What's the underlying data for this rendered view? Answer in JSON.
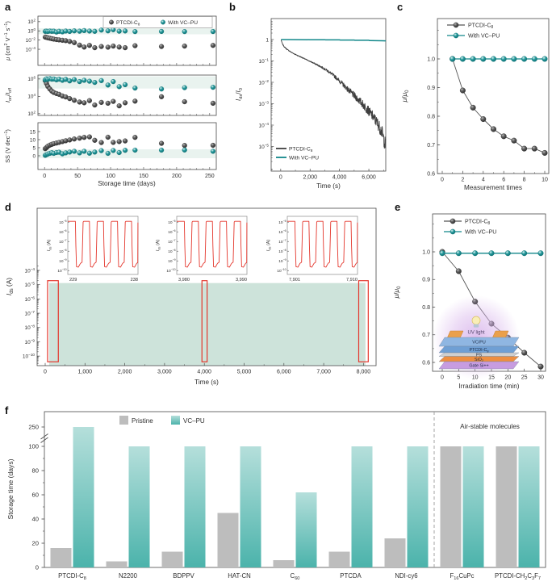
{
  "colors": {
    "teal": "#11878a",
    "dark": "#3f3f3f",
    "dark_line": "#4a4a4a",
    "band": "#e9f3ef",
    "fill": "#cde3da",
    "red": "#e4362c",
    "bar_gray": "#bdbdbd",
    "bar_teal_top": "#b5dfdb",
    "bar_teal_bottom": "#4bb3ab",
    "axis": "#4a4a4a",
    "text": "#2e2e2e",
    "glow": "#d8b4eb"
  },
  "chart_data": [
    {
      "id": "a",
      "label": "a",
      "type": "scatter-multi",
      "x_title": "Storage time (days)",
      "x_ticks": [
        0,
        50,
        100,
        150,
        200,
        250
      ],
      "legend": [
        {
          "name": "PTCDI-C<sub>8</sub>",
          "series": "dark"
        },
        {
          "name": "With VC–PU",
          "series": "teal"
        }
      ],
      "days": [
        1,
        3,
        5,
        8,
        11,
        14,
        18,
        22,
        27,
        32,
        38,
        45,
        53,
        60,
        68,
        76,
        86,
        96,
        104,
        113,
        122,
        137,
        177,
        212,
        255
      ],
      "subplots": [
        {
          "y_title": "<i>μ</i> (cm<sup>2</sup> V<sup>−1</sup> s<sup>−1</sup>)",
          "scale": "log",
          "y_tick_exps": [
            2,
            0,
            -2,
            -4
          ],
          "dark": [
            0.045,
            0.038,
            0.031,
            0.025,
            0.02,
            0.016,
            0.013,
            0.011,
            0.009,
            0.0075,
            0.005,
            0.0028,
            0.0008,
            0.0003,
            0.0007,
            0.00022,
            0.0004,
            0.00028,
            0.0005,
            0.0003,
            0.00022,
            0.0006,
            0.0004,
            0.0005,
            0.0007
          ],
          "teal": [
            0.8,
            0.85,
            0.75,
            0.9,
            0.8,
            0.85,
            0.55,
            0.8,
            0.6,
            0.9,
            0.75,
            1.0,
            0.85,
            1.15,
            0.9,
            0.8,
            1.5,
            1.0,
            1.8,
            0.85,
            0.95,
            0.7,
            0.75,
            0.7,
            0.72
          ]
        },
        {
          "y_title": "<i>I</i><sub>on</sub>/<i>I</i><sub>off</sub>",
          "scale": "log",
          "y_tick_exps": [
            6,
            4,
            2
          ],
          "dark": [
            650000,
            300000,
            140000,
            70000,
            40000,
            28000,
            21000,
            17000,
            11000,
            8500,
            5500,
            3500,
            2200,
            1800,
            3200,
            1000,
            2000,
            1600,
            2600,
            800,
            1800,
            2800,
            9000,
            2400,
            1600
          ],
          "teal": [
            800000,
            1050000,
            900000,
            1100000,
            950000,
            1000000,
            800000,
            950000,
            700000,
            900000,
            600000,
            850000,
            500000,
            700000,
            550000,
            400000,
            650000,
            200000,
            500000,
            130000,
            220000,
            90000,
            70000,
            100000,
            110000
          ]
        },
        {
          "y_title": "SS (V dec<sup>−1</sup>)",
          "scale": "linear",
          "y_ticks": [
            "15",
            "10",
            "5",
            "0"
          ],
          "dark": [
            4.4,
            5.1,
            5.9,
            6.6,
            7.1,
            7.5,
            7.9,
            8.3,
            8.8,
            9.3,
            9.8,
            10.4,
            10.9,
            11.4,
            11.7,
            9.6,
            8.2,
            11.5,
            8.3,
            8.8,
            9.2,
            11.4,
            7.7,
            6.4,
            6.5
          ],
          "teal": [
            0.3,
            0.7,
            1.1,
            1.5,
            1.9,
            1.5,
            2.0,
            2.2,
            1.2,
            1.8,
            2.3,
            2.8,
            1.8,
            2.8,
            1.6,
            2.3,
            3.2,
            1.5,
            3.3,
            2.0,
            3.4,
            3.5,
            3.5,
            3.6,
            2.8
          ]
        }
      ]
    },
    {
      "id": "b",
      "label": "b",
      "type": "line",
      "x_title": "Time (s)",
      "x_ticks": [
        {
          "v": 0,
          "label": "0"
        },
        {
          "v": 2000,
          "label": "2,000"
        },
        {
          "v": 4000,
          "label": "4,000"
        },
        {
          "v": 6000,
          "label": "6,000"
        }
      ],
      "y_title": "<i>I</i><sub>ds</sub>/<i>I</i><sub>0</sub>",
      "y_tick_exps": [
        0,
        -1,
        -2,
        -3,
        -4,
        -5
      ],
      "legend": [
        "PTCDI-C<sub>8</sub>",
        "With VC–PU"
      ],
      "dark": {
        "t": [
          30,
          60,
          120,
          250,
          450,
          700,
          1000,
          1400,
          1800,
          2200,
          2600,
          3000,
          3400,
          3800,
          4200,
          4600,
          5000,
          5400,
          5800,
          6200,
          6600,
          6900,
          7150
        ],
        "v": [
          1.0,
          0.8,
          0.62,
          0.45,
          0.34,
          0.26,
          0.2,
          0.15,
          0.11,
          0.082,
          0.06,
          0.042,
          0.027,
          0.016,
          0.0085,
          0.0045,
          0.0024,
          0.0013,
          0.00065,
          0.0003,
          0.00012,
          4.5e-05,
          1e-05
        ]
      },
      "teal": {
        "t": [
          30,
          1000,
          2000,
          3000,
          3050,
          4000,
          4050,
          5000,
          5050,
          6000,
          6050,
          6900,
          7150
        ],
        "v": [
          1.0,
          0.99,
          0.985,
          0.985,
          0.96,
          0.96,
          0.945,
          0.945,
          0.92,
          0.92,
          0.89,
          0.875,
          0.87
        ]
      }
    },
    {
      "id": "c",
      "label": "c",
      "type": "line-scatter",
      "x_title": "Measurement times",
      "x_ticks": [
        0,
        2,
        4,
        6,
        8,
        10
      ],
      "y_title": "<i>μ</i>/<i>μ</i><sub>0</sub>",
      "y_ticks": [
        "1.0",
        "0.9",
        "0.8",
        "0.7",
        "0.6"
      ],
      "legend": [
        "PTCDI-C<sub>8</sub>",
        "With VC–PU"
      ],
      "x": [
        1,
        2,
        3,
        4,
        5,
        6,
        7,
        8,
        9,
        10
      ],
      "dark": [
        1.0,
        0.89,
        0.83,
        0.79,
        0.755,
        0.73,
        0.715,
        0.687,
        0.687,
        0.672
      ],
      "teal": [
        1.0,
        1.0,
        1.0,
        1.0,
        1.0,
        1.0,
        1.0,
        1.0,
        1.0,
        1.0
      ]
    },
    {
      "id": "d",
      "label": "d",
      "type": "pulse-train",
      "x_title": "Time (s)",
      "x_ticks": [
        {
          "v": 0,
          "label": "0"
        },
        {
          "v": 1000,
          "label": "1,000"
        },
        {
          "v": 2000,
          "label": "2,000"
        },
        {
          "v": 3000,
          "label": "3,000"
        },
        {
          "v": 4000,
          "label": "4,000"
        },
        {
          "v": 5000,
          "label": "5,000"
        },
        {
          "v": 6000,
          "label": "6,000"
        },
        {
          "v": 7000,
          "label": "7,000"
        },
        {
          "v": 8000,
          "label": "8,000"
        }
      ],
      "y_title": "<i>I</i><sub>ds</sub> (A)",
      "y_tick_exps": [
        -4,
        -5,
        -6,
        -7,
        -8,
        -9,
        -10
      ],
      "envelope": {
        "high": 1.3e-05,
        "low": 3e-10,
        "t0": 100,
        "t1": 8050
      },
      "highlight_regions_s": [
        [
          60,
          330
        ],
        [
          3940,
          4070
        ],
        [
          7880,
          8120
        ]
      ],
      "inset_y_title": "<i>I</i><sub>ds</sub> (A)",
      "inset_y_tick_exps": [
        -5,
        -6,
        -7,
        -8,
        -9,
        -10
      ],
      "pulse": {
        "high": 1.2e-05,
        "low": 2.5e-10,
        "cycles": 5
      },
      "insets": [
        {
          "x_left": "229",
          "x_right": "238"
        },
        {
          "x_left": "3,980",
          "x_right": "3,990"
        },
        {
          "x_left": "7,901",
          "x_right": "7,910"
        }
      ]
    },
    {
      "id": "e",
      "label": "e",
      "type": "line-scatter",
      "x_title": "Irradiation time (min)",
      "x_ticks": [
        0,
        5,
        10,
        15,
        20,
        25,
        30
      ],
      "y_title": "<i>μ</i>/<i>μ</i><sub>0</sub>",
      "y_ticks": [
        "1.0",
        "0.9",
        "0.8",
        "0.7",
        "0.6"
      ],
      "legend": [
        "PTCDI-C<sub>8</sub>",
        "With VC–PU"
      ],
      "x": [
        0,
        5,
        10,
        15,
        20,
        25,
        30
      ],
      "dark": [
        1.0,
        0.93,
        0.82,
        0.74,
        0.69,
        0.635,
        0.585
      ],
      "teal": [
        0.995,
        0.995,
        0.995,
        0.995,
        0.995,
        0.995,
        0.995
      ],
      "inset": {
        "uv_label": "UV light",
        "layers": [
          {
            "name": "VC/PU",
            "color": "#8fb6e2"
          },
          {
            "name": "PTCDI-C<sub>8</sub>",
            "color": "#6f9fd4"
          },
          {
            "name": "PS",
            "color": "#cfcfcf"
          },
          {
            "name": "SiO<sub>2</sub>",
            "color": "#ee8e40"
          },
          {
            "name": "Gate Si++",
            "color": "#c79ce0"
          }
        ]
      }
    },
    {
      "id": "f",
      "label": "f",
      "type": "bar",
      "y_title": "Storage time (days)",
      "y_ticks": [
        0,
        20,
        40,
        60,
        80,
        100
      ],
      "y_break_tick": "250",
      "legend": [
        {
          "name": "Pristine",
          "color": "gray"
        },
        {
          "name": "VC–PU",
          "color": "teal"
        }
      ],
      "annotation": "Air-stable molecules",
      "categories": [
        "PTCDI-C<sub>8</sub>",
        "N2200",
        "BDPPV",
        "HAT-CN",
        "C<sub>60</sub>",
        "PTCDA",
        "NDI-cy6",
        "F<sub>16</sub>CuPc",
        "PTCDI-CH<sub>2</sub>C<sub>3</sub>F<sub>7</sub>"
      ],
      "pristine": [
        16,
        5,
        13,
        45,
        6,
        13,
        24,
        100,
        100
      ],
      "vc_pu": [
        250,
        100,
        100,
        100,
        62,
        100,
        100,
        100,
        100
      ],
      "air_stable_from_index": 7
    }
  ]
}
